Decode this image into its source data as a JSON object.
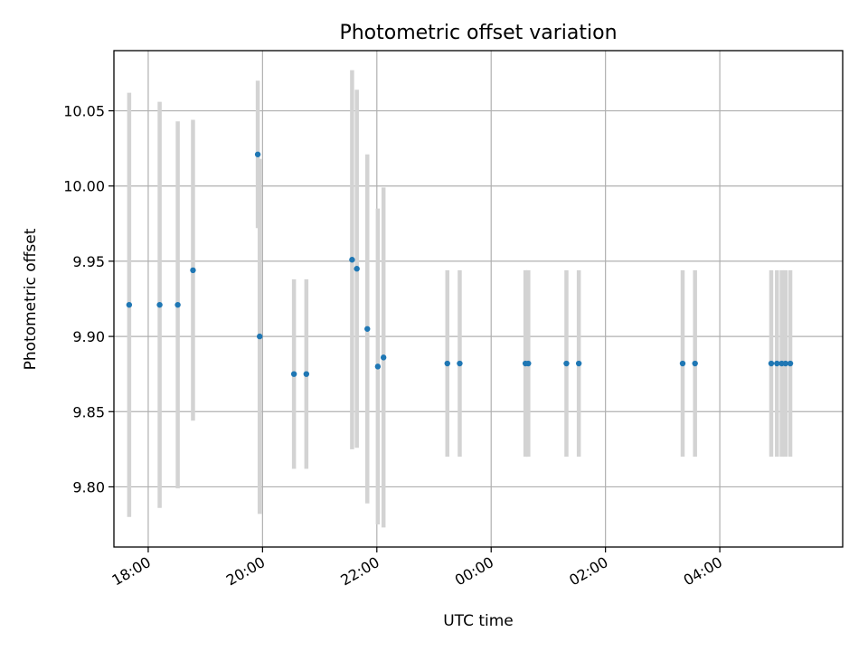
{
  "chart_data": {
    "type": "scatter",
    "title": "Photometric offset variation",
    "xlabel": "UTC time",
    "ylabel": "Photometric offset",
    "x_ticks": [
      "18:00",
      "20:00",
      "22:00",
      "00:00",
      "02:00",
      "04:00"
    ],
    "x_tick_hours": [
      18,
      20,
      22,
      24,
      26,
      28
    ],
    "xlim_hours": [
      17.4,
      30.15
    ],
    "y_ticks": [
      "9.80",
      "9.85",
      "9.90",
      "9.95",
      "10.00",
      "10.05"
    ],
    "y_tick_values": [
      9.8,
      9.85,
      9.9,
      9.95,
      10.0,
      10.05
    ],
    "ylim": [
      9.76,
      10.09
    ],
    "grid": true,
    "colors": {
      "point": "#1f77b4",
      "errorbar": "#d3d3d3",
      "grid": "#b0b0b0"
    },
    "points": [
      {
        "t": "17:40",
        "y": 9.921,
        "err": 0.141
      },
      {
        "t": "18:12",
        "y": 9.921,
        "err": 0.135
      },
      {
        "t": "18:31",
        "y": 9.921,
        "err": 0.122
      },
      {
        "t": "18:47",
        "y": 9.944,
        "err": 0.1
      },
      {
        "t": "19:55",
        "y": 10.021,
        "err": 0.049
      },
      {
        "t": "19:57",
        "y": 9.9,
        "err": 0.118
      },
      {
        "t": "20:33",
        "y": 9.875,
        "err": 0.063
      },
      {
        "t": "20:46",
        "y": 9.875,
        "err": 0.063
      },
      {
        "t": "21:34",
        "y": 9.951,
        "err": 0.126
      },
      {
        "t": "21:39",
        "y": 9.945,
        "err": 0.119
      },
      {
        "t": "21:50",
        "y": 9.905,
        "err": 0.116
      },
      {
        "t": "22:01",
        "y": 9.88,
        "err": 0.105
      },
      {
        "t": "22:07",
        "y": 9.886,
        "err": 0.113
      },
      {
        "t": "23:14",
        "y": 9.882,
        "err": 0.062
      },
      {
        "t": "23:27",
        "y": 9.882,
        "err": 0.062
      },
      {
        "t": "00:36",
        "y": 9.882,
        "err": 0.062
      },
      {
        "t": "00:39",
        "y": 9.882,
        "err": 0.062
      },
      {
        "t": "01:19",
        "y": 9.882,
        "err": 0.062
      },
      {
        "t": "01:32",
        "y": 9.882,
        "err": 0.062
      },
      {
        "t": "03:21",
        "y": 9.882,
        "err": 0.062
      },
      {
        "t": "03:34",
        "y": 9.882,
        "err": 0.062
      },
      {
        "t": "04:54",
        "y": 9.882,
        "err": 0.062
      },
      {
        "t": "05:00",
        "y": 9.882,
        "err": 0.062
      },
      {
        "t": "05:05",
        "y": 9.882,
        "err": 0.062
      },
      {
        "t": "05:09",
        "y": 9.882,
        "err": 0.062
      },
      {
        "t": "05:14",
        "y": 9.882,
        "err": 0.062
      }
    ]
  }
}
